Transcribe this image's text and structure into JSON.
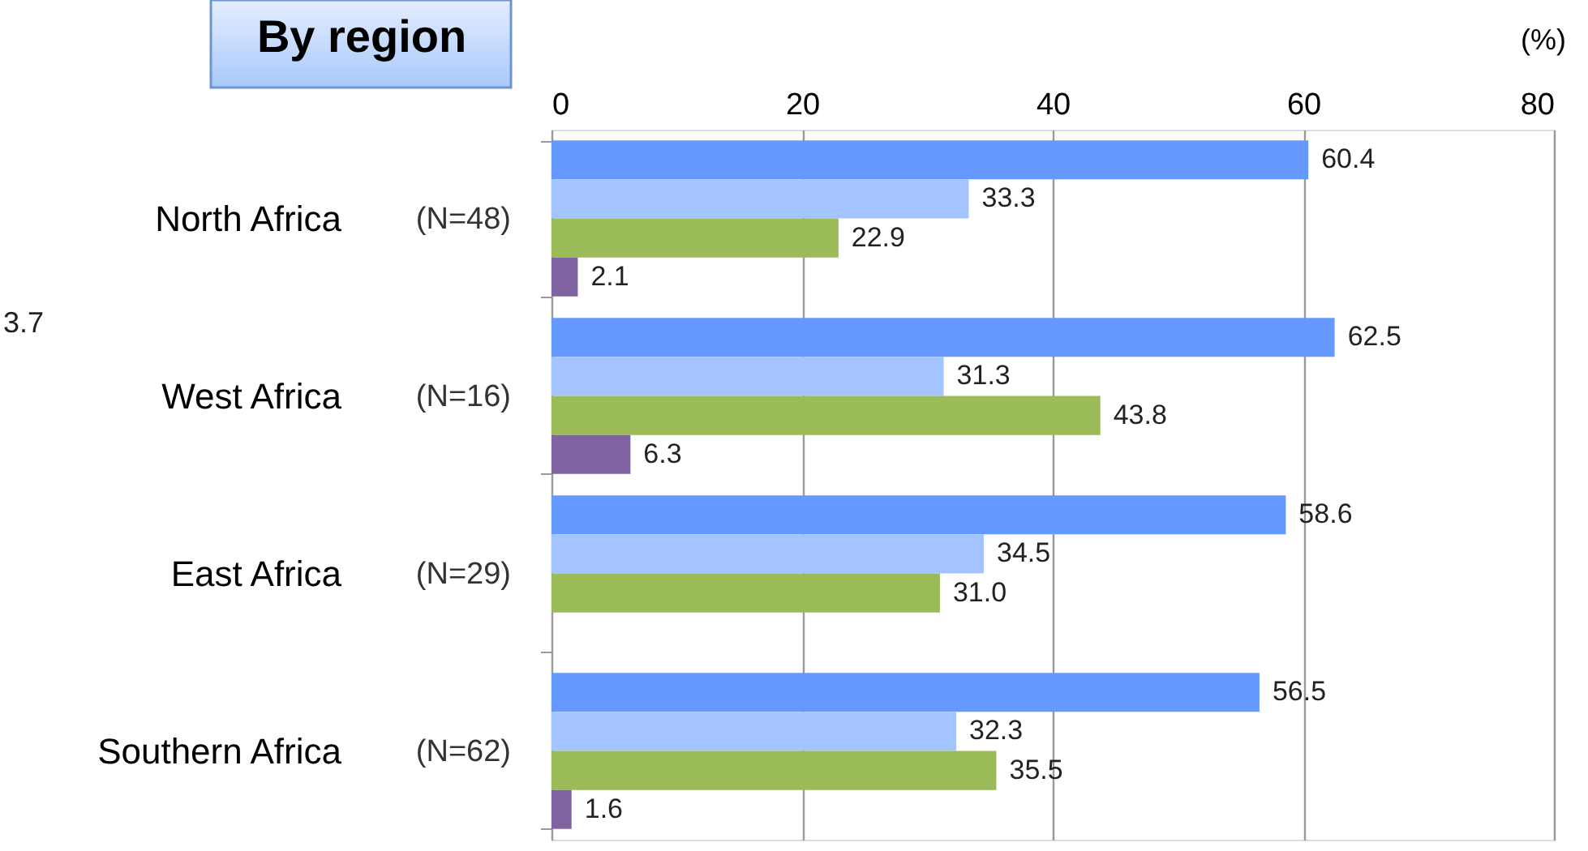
{
  "chart_data": {
    "type": "bar",
    "orientation": "horizontal",
    "title": "By region",
    "xlabel": "(%)",
    "categories": [
      "North Africa",
      "West Africa",
      "East Africa",
      "Southern Africa"
    ],
    "y2_categories": [
      "(N=48)",
      "(N=16)",
      "(N=29)",
      "(N=62)"
    ],
    "series": [
      {
        "color": "#6699ff",
        "values": [
          60.4,
          62.5,
          58.6,
          56.5
        ],
        "value_labels": [
          "60.4",
          "62.5",
          "58.6",
          "56.5"
        ]
      },
      {
        "color": "#a3c4ff",
        "values": [
          33.3,
          31.3,
          34.5,
          32.3
        ],
        "value_labels": [
          "33.3",
          "31.3",
          "34.5",
          "32.3"
        ]
      },
      {
        "color": "#9bbb59",
        "values": [
          22.9,
          43.8,
          31.0,
          35.5
        ],
        "value_labels": [
          "22.9",
          "43.8",
          "31.0",
          "35.5"
        ]
      },
      {
        "color": "#8064a2",
        "values": [
          2.1,
          6.3,
          null,
          1.6
        ],
        "value_labels": [
          "2.1",
          "6.3",
          null,
          "1.6"
        ]
      }
    ],
    "xlim": [
      0,
      80
    ],
    "xticks": [
      0,
      20,
      40,
      60,
      80
    ],
    "grid": "x",
    "annotations": [
      "3.7"
    ]
  }
}
